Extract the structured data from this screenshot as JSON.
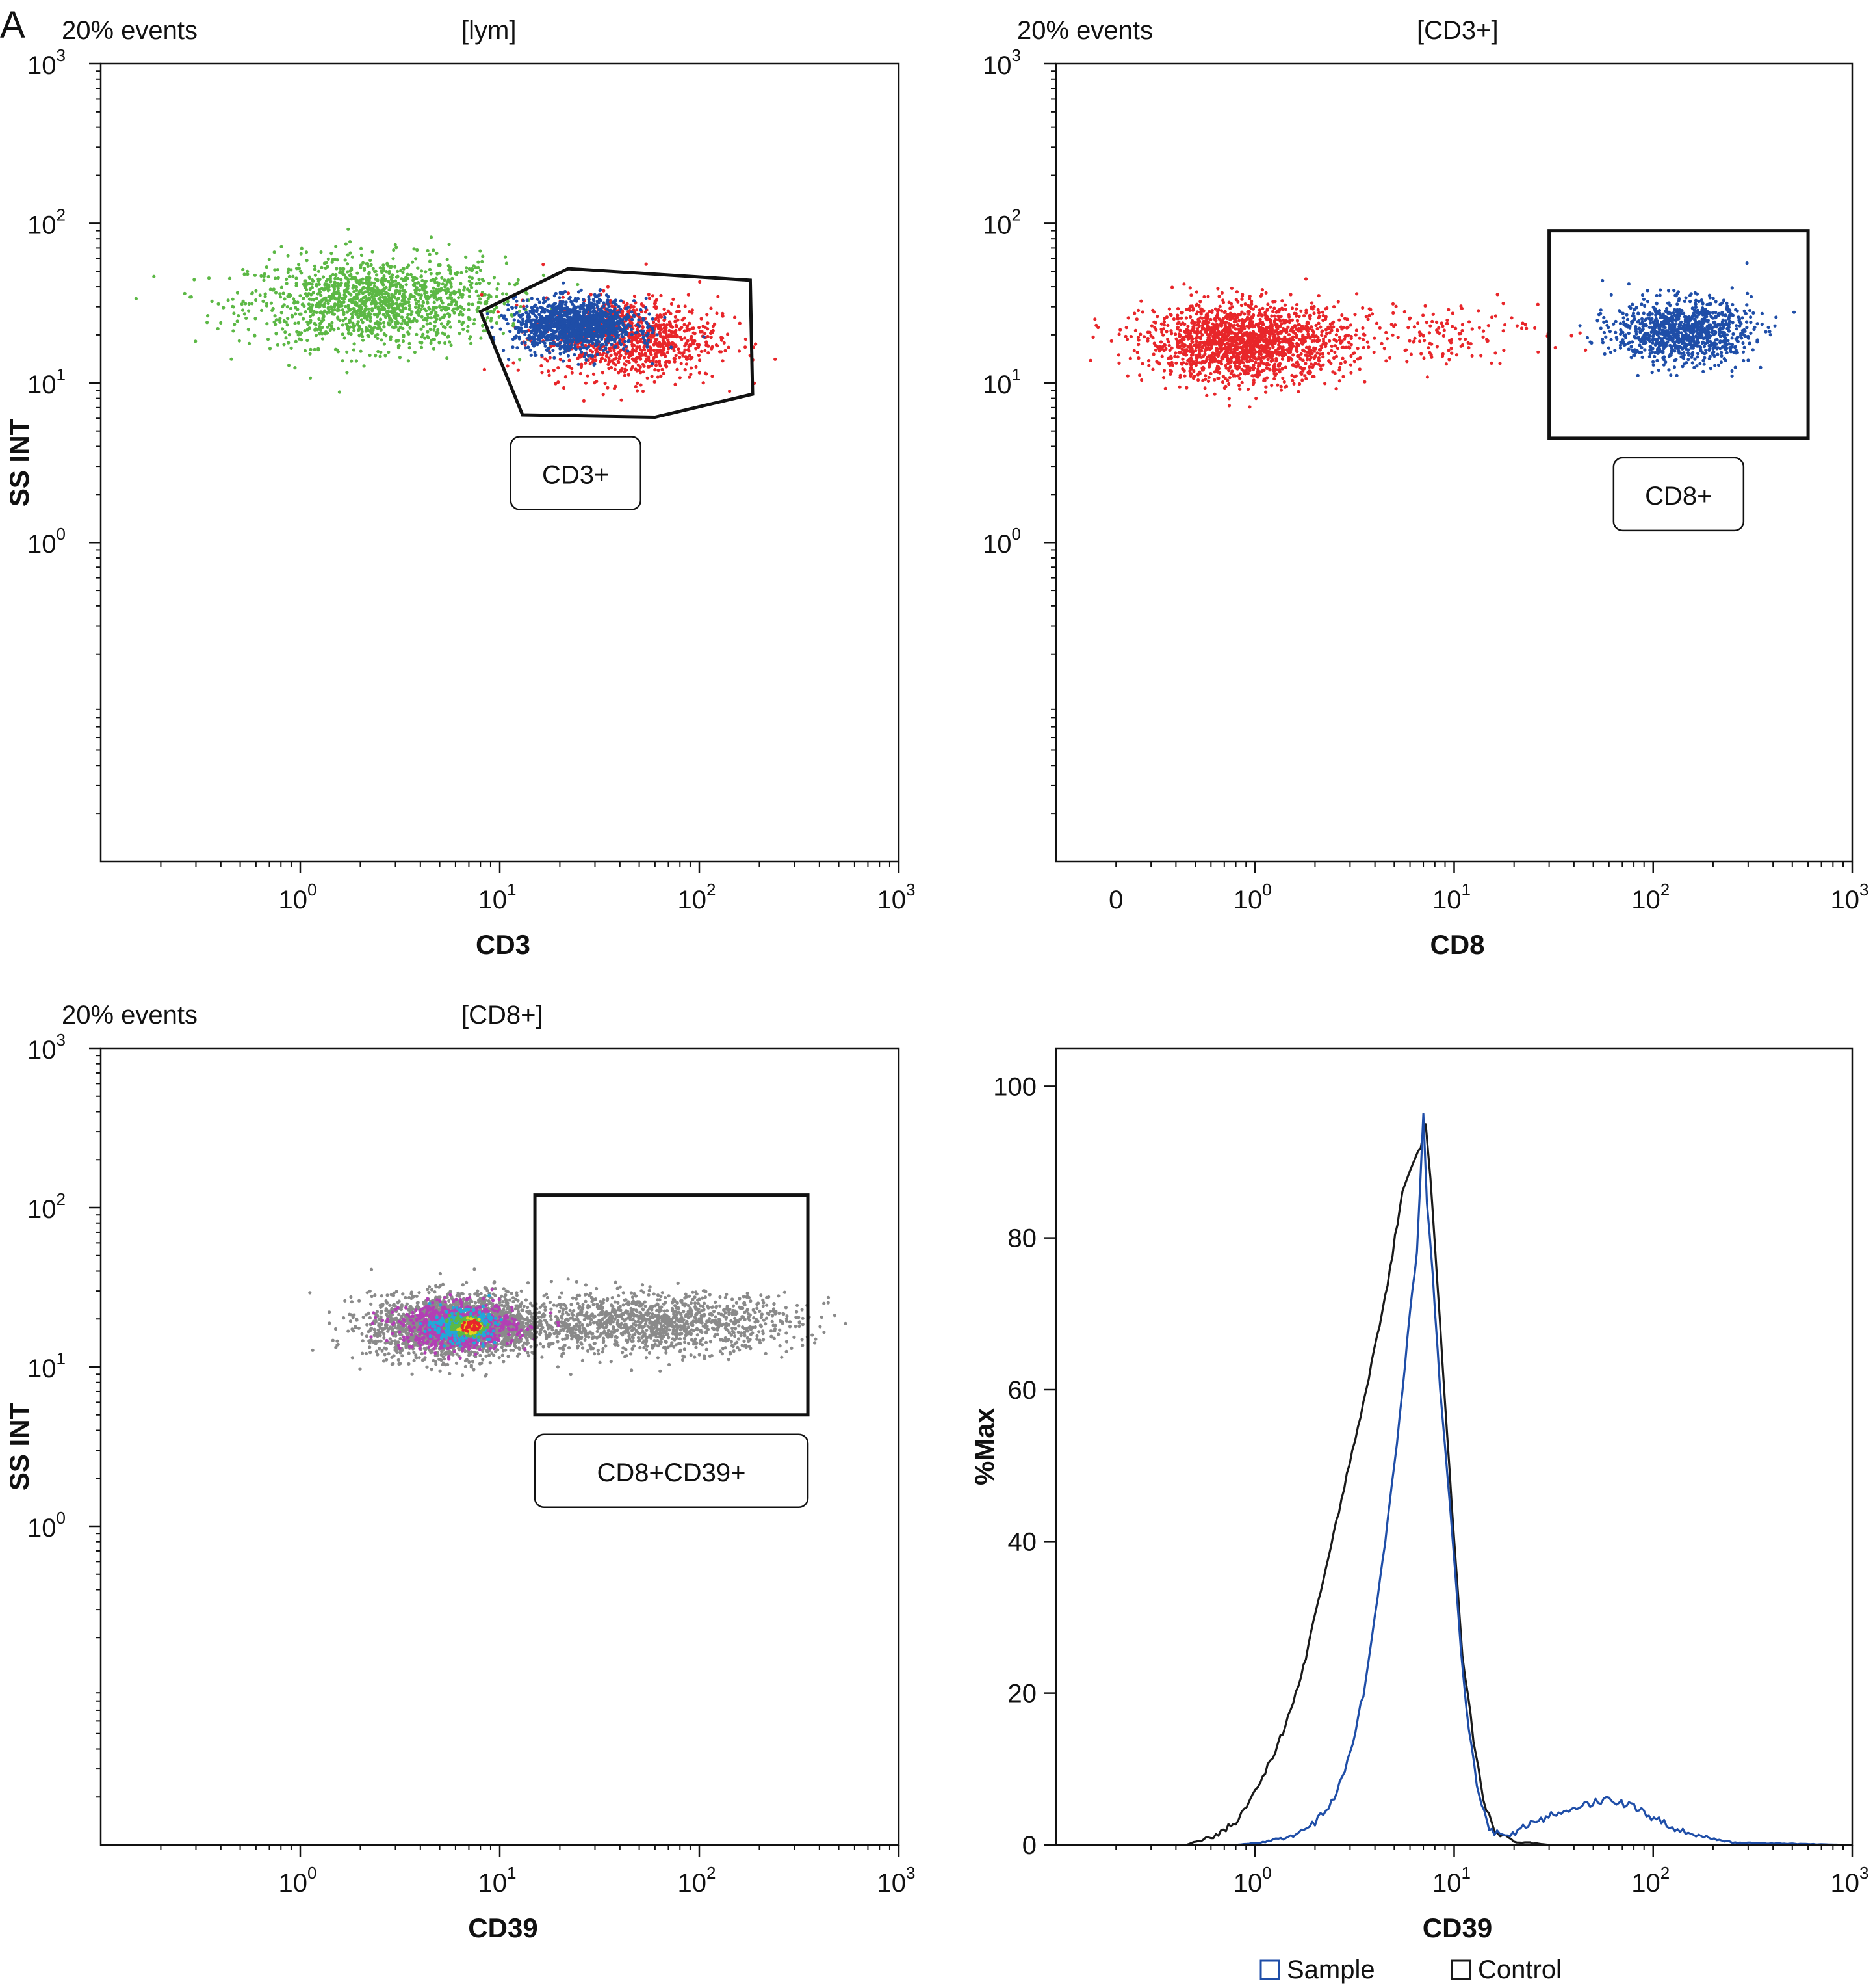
{
  "figure_label": "A",
  "legend": {
    "sample": "Sample",
    "control": "Control"
  },
  "colors": {
    "green": "#5cb845",
    "blue": "#1f4ea8",
    "red": "#e8262a",
    "gray": "#8a8a8a",
    "magenta": "#b33fb5",
    "cyan": "#22a8d9",
    "yellow": "#e6d21a",
    "black": "#1a1a1a"
  },
  "chart_data": [
    {
      "type": "scatter",
      "id": "cd3",
      "events": "20% events",
      "gate_parent": "[lym]",
      "xlabel": "CD3",
      "ylabel": "SS INT",
      "x_scale": "log",
      "xlim": [
        0.1,
        1000
      ],
      "y_scale": "log",
      "ylim": [
        0.01,
        1000
      ],
      "x_ticks": [
        {
          "v": 1,
          "e": "0"
        },
        {
          "v": 10,
          "e": "1"
        },
        {
          "v": 100,
          "e": "2"
        },
        {
          "v": 1000,
          "e": "3"
        }
      ],
      "y_ticks": [
        {
          "v": 1,
          "e": "0"
        },
        {
          "v": 10,
          "e": "1"
        },
        {
          "v": 100,
          "e": "2"
        },
        {
          "v": 1000,
          "e": "3"
        }
      ],
      "clusters": [
        {
          "color": "green",
          "n": 1400,
          "cx": 2.4,
          "cy": 32,
          "sx": 0.32,
          "sy": 0.14
        },
        {
          "color": "red",
          "n": 900,
          "cx": 45,
          "cy": 19,
          "sx": 0.22,
          "sy": 0.13
        },
        {
          "color": "blue",
          "n": 1300,
          "cx": 24,
          "cy": 23,
          "sx": 0.15,
          "sy": 0.08
        }
      ],
      "gate": {
        "shape": "polygon",
        "label": "CD3+",
        "points": [
          [
            8,
            28
          ],
          [
            22,
            52
          ],
          [
            180,
            44
          ],
          [
            185,
            8.5
          ],
          [
            60,
            6.1
          ],
          [
            13,
            6.3
          ]
        ]
      }
    },
    {
      "type": "scatter",
      "id": "cd8",
      "events": "20% events",
      "gate_parent": "[CD3+]",
      "xlabel": "CD8",
      "ylabel": "SS INT",
      "x_scale": "log",
      "xlim": [
        0.1,
        1000
      ],
      "y_scale": "log",
      "ylim": [
        0.01,
        1000
      ],
      "x_ticks": [
        {
          "v": 1,
          "e": "0"
        },
        {
          "v": 10,
          "e": "1"
        },
        {
          "v": 100,
          "e": "2"
        },
        {
          "v": 1000,
          "e": "3"
        }
      ],
      "x_zero_label": "0",
      "y_ticks": [
        {
          "v": 1,
          "e": "0"
        },
        {
          "v": 10,
          "e": "1"
        },
        {
          "v": 100,
          "e": "2"
        },
        {
          "v": 1000,
          "e": "3"
        }
      ],
      "clusters": [
        {
          "color": "red",
          "n": 1700,
          "cx": 0.9,
          "cy": 18,
          "sx": 0.25,
          "sy": 0.12
        },
        {
          "color": "red",
          "n": 160,
          "cx": 7,
          "cy": 21,
          "sx": 0.3,
          "sy": 0.1
        },
        {
          "color": "blue",
          "n": 1000,
          "cx": 140,
          "cy": 21,
          "sx": 0.17,
          "sy": 0.1
        }
      ],
      "gate": {
        "shape": "rect",
        "label": "CD8+",
        "x": [
          30,
          600
        ],
        "y": [
          4.5,
          90
        ]
      }
    },
    {
      "type": "scatter",
      "id": "cd39",
      "events": "20% events",
      "gate_parent": "[CD8+]",
      "xlabel": "CD39",
      "ylabel": "SS INT",
      "x_scale": "log",
      "xlim": [
        0.1,
        1000
      ],
      "y_scale": "log",
      "ylim": [
        0.01,
        1000
      ],
      "x_ticks": [
        {
          "v": 1,
          "e": "0"
        },
        {
          "v": 10,
          "e": "1"
        },
        {
          "v": 100,
          "e": "2"
        },
        {
          "v": 1000,
          "e": "3"
        }
      ],
      "y_ticks": [
        {
          "v": 1,
          "e": "0"
        },
        {
          "v": 10,
          "e": "1"
        },
        {
          "v": 100,
          "e": "2"
        },
        {
          "v": 1000,
          "e": "3"
        }
      ],
      "clusters": [
        {
          "color": "gray",
          "n": 2200,
          "cx": 6.2,
          "cy": 18,
          "sx": 0.22,
          "sy": 0.1
        },
        {
          "color": "gray",
          "n": 1300,
          "cx": 60,
          "cy": 19,
          "sx": 0.35,
          "sy": 0.09
        },
        {
          "color": "magenta",
          "n": 900,
          "cx": 6.2,
          "cy": 18,
          "sx": 0.14,
          "sy": 0.07
        },
        {
          "color": "cyan",
          "n": 350,
          "cx": 6.5,
          "cy": 18,
          "sx": 0.07,
          "sy": 0.045
        },
        {
          "color": "green",
          "n": 180,
          "cx": 6.8,
          "cy": 18,
          "sx": 0.04,
          "sy": 0.03
        },
        {
          "color": "yellow",
          "n": 60,
          "cx": 7,
          "cy": 18,
          "sx": 0.025,
          "sy": 0.02
        },
        {
          "color": "red",
          "n": 35,
          "cx": 7.2,
          "cy": 18,
          "sx": 0.02,
          "sy": 0.02
        }
      ],
      "gate": {
        "shape": "rect",
        "label": "CD8+CD39+",
        "x": [
          15,
          350
        ],
        "y": [
          5,
          120
        ]
      }
    },
    {
      "type": "line",
      "id": "hist",
      "xlabel": "CD39",
      "ylabel": "%Max",
      "x_scale": "log",
      "xlim": [
        0.1,
        1000
      ],
      "ylim": [
        0,
        105
      ],
      "x_ticks": [
        {
          "v": 1,
          "e": "0"
        },
        {
          "v": 10,
          "e": "1"
        },
        {
          "v": 100,
          "e": "2"
        },
        {
          "v": 1000,
          "e": "3"
        }
      ],
      "y_ticks": [
        0,
        20,
        40,
        60,
        80,
        100
      ],
      "series": [
        {
          "name": "Control",
          "color": "black",
          "x": [
            0.1,
            0.45,
            0.6,
            0.8,
            1.0,
            1.3,
            1.7,
            2.2,
            2.8,
            3.5,
            4.5,
            5.5,
            6.2,
            6.8,
            7.2,
            7.6,
            8.2,
            9.0,
            10.0,
            11.0,
            12.5,
            14.0,
            16.0,
            20.0,
            30.0,
            100.0,
            1000.0
          ],
          "y": [
            0,
            0,
            1,
            3,
            7,
            13,
            22,
            35,
            47,
            58,
            72,
            86,
            90,
            92,
            95,
            88,
            75,
            58,
            40,
            25,
            14,
            6,
            2,
            0.5,
            0,
            0,
            0
          ]
        },
        {
          "name": "Sample",
          "color": "blue",
          "x": [
            0.1,
            0.8,
            1.2,
            1.6,
            2.0,
            2.5,
            3.0,
            3.5,
            4.0,
            4.5,
            5.0,
            5.5,
            6.0,
            6.5,
            7.0,
            7.3,
            7.8,
            8.5,
            9.5,
            10.5,
            11.5,
            13.0,
            15.0,
            18.0,
            25.0,
            40.0,
            60.0,
            80.0,
            110.0,
            150.0,
            250.0,
            1000.0
          ],
          "y": [
            0,
            0,
            0.5,
            1.5,
            3,
            6,
            12,
            20,
            30,
            40,
            50,
            60,
            70,
            78,
            96,
            85,
            75,
            60,
            45,
            30,
            18,
            8,
            2,
            1,
            3,
            5,
            6,
            5,
            3,
            1.5,
            0.3,
            0
          ]
        }
      ]
    }
  ]
}
